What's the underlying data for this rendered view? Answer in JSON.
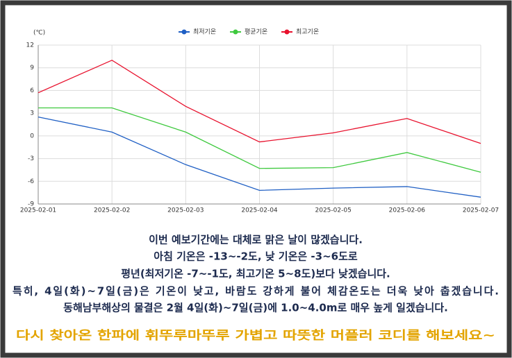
{
  "chart_data": {
    "type": "line",
    "unit_label": "(℃)",
    "x": [
      "2025-02-01",
      "2025-02-02",
      "2025-02-03",
      "2025-02-04",
      "2025-02-05",
      "2025-02-06",
      "2025-02-07"
    ],
    "series": [
      {
        "name": "최저기온",
        "color": "#1f5fc4",
        "values": [
          2.5,
          0.5,
          -3.8,
          -7.2,
          -6.9,
          -6.7,
          -8.1
        ]
      },
      {
        "name": "평균기온",
        "color": "#3ec93e",
        "values": [
          3.7,
          3.7,
          0.5,
          -4.3,
          -4.2,
          -2.2,
          -4.8
        ]
      },
      {
        "name": "최고기온",
        "color": "#e8112d",
        "values": [
          5.7,
          10.0,
          3.9,
          -0.8,
          0.4,
          2.3,
          -1.0
        ]
      }
    ],
    "ylim": [
      -9,
      12
    ],
    "yticks": [
      -9,
      -6,
      -3,
      0,
      3,
      6,
      9,
      12
    ],
    "grid": true,
    "legend": "top"
  },
  "notice": {
    "lines": [
      "이번 예보기간에는 대체로 맑은 날이 많겠습니다.",
      "아침 기온은 -13~-2도, 낮 기온은 -3~6도로",
      "평년(최저기온 -7~-1도, 최고기온 5~8도)보다 낮겠습니다.",
      "특히, 4일(화)~7일(금)은 기온이 낮고, 바람도 강하게 불어 체감온도는 더욱 낮아 춥겠습니다.",
      "동해남부해상의 물결은 2월 4일(화)~7일(금)에 1.0~4.0m로 매우 높게 일겠습니다."
    ],
    "highlight": "다시 찾아온 한파에 휘뚜루마뚜루 가볍고 따뜻한 머플러 코디를 해보세요~"
  }
}
